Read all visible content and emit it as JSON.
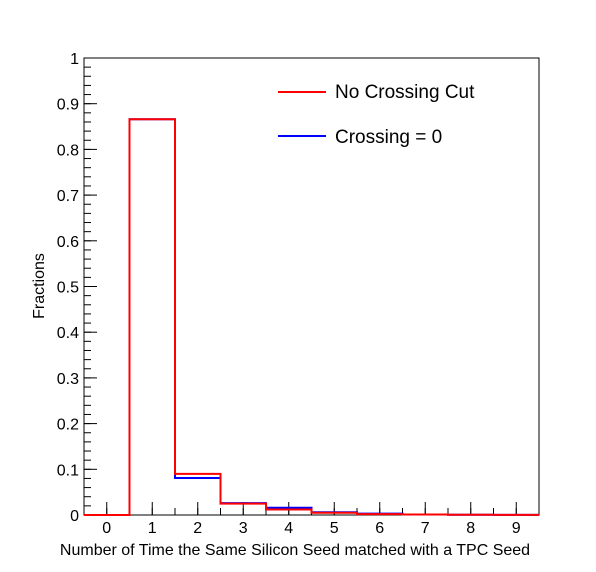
{
  "chart_data": {
    "type": "histogram-step",
    "title": "",
    "xlabel": "Number of Time the Same Silicon Seed matched with a TPC Seed",
    "ylabel": "Fractions",
    "xlim": [
      -0.5,
      9.5
    ],
    "ylim": [
      0,
      1
    ],
    "x_ticks": [
      "0",
      "1",
      "2",
      "3",
      "4",
      "5",
      "6",
      "7",
      "8",
      "9"
    ],
    "y_ticks": [
      "0",
      "0.1",
      "0.2",
      "0.3",
      "0.4",
      "0.5",
      "0.6",
      "0.7",
      "0.8",
      "0.9",
      "1"
    ],
    "bins": [
      0,
      1,
      2,
      3,
      4,
      5,
      6,
      7,
      8,
      9
    ],
    "series": [
      {
        "name": "Crossing = 0",
        "color": "#0000ff",
        "values": [
          0,
          0.866,
          0.081,
          0.026,
          0.016,
          0.006,
          0.003,
          0.001,
          0.0005,
          0.0003
        ]
      },
      {
        "name": "No Crossing Cut",
        "color": "#ff0000",
        "values": [
          0,
          0.866,
          0.09,
          0.025,
          0.012,
          0.005,
          0.002,
          0.001,
          0.0005,
          0.0003
        ]
      }
    ],
    "legend": {
      "position": "top-right",
      "entries": [
        "No Crossing Cut",
        "Crossing = 0"
      ]
    },
    "grid": false
  }
}
